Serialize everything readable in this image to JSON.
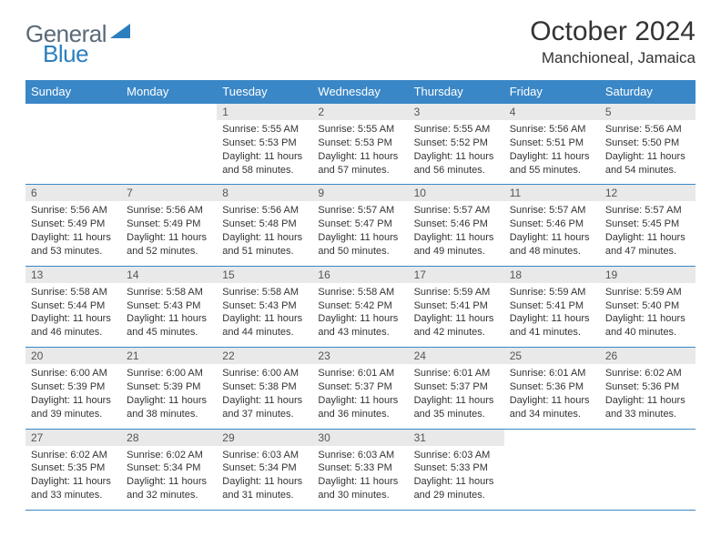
{
  "brand": {
    "part1": "General",
    "part2": "Blue"
  },
  "title": "October 2024",
  "location": "Manchioneal, Jamaica",
  "colors": {
    "header_bg": "#3a87c7",
    "header_text": "#ffffff",
    "daynum_bg": "#e9e9e9",
    "border": "#3a87c7",
    "logo_gray": "#5a6a78",
    "logo_blue": "#2b7fbf"
  },
  "typography": {
    "title_fontsize": 30,
    "location_fontsize": 17,
    "header_fontsize": 13,
    "body_fontsize": 11
  },
  "days_of_week": [
    "Sunday",
    "Monday",
    "Tuesday",
    "Wednesday",
    "Thursday",
    "Friday",
    "Saturday"
  ],
  "weeks": [
    [
      {
        "n": "",
        "sr": "",
        "ss": "",
        "dl": ""
      },
      {
        "n": "",
        "sr": "",
        "ss": "",
        "dl": ""
      },
      {
        "n": "1",
        "sr": "Sunrise: 5:55 AM",
        "ss": "Sunset: 5:53 PM",
        "dl": "Daylight: 11 hours and 58 minutes."
      },
      {
        "n": "2",
        "sr": "Sunrise: 5:55 AM",
        "ss": "Sunset: 5:53 PM",
        "dl": "Daylight: 11 hours and 57 minutes."
      },
      {
        "n": "3",
        "sr": "Sunrise: 5:55 AM",
        "ss": "Sunset: 5:52 PM",
        "dl": "Daylight: 11 hours and 56 minutes."
      },
      {
        "n": "4",
        "sr": "Sunrise: 5:56 AM",
        "ss": "Sunset: 5:51 PM",
        "dl": "Daylight: 11 hours and 55 minutes."
      },
      {
        "n": "5",
        "sr": "Sunrise: 5:56 AM",
        "ss": "Sunset: 5:50 PM",
        "dl": "Daylight: 11 hours and 54 minutes."
      }
    ],
    [
      {
        "n": "6",
        "sr": "Sunrise: 5:56 AM",
        "ss": "Sunset: 5:49 PM",
        "dl": "Daylight: 11 hours and 53 minutes."
      },
      {
        "n": "7",
        "sr": "Sunrise: 5:56 AM",
        "ss": "Sunset: 5:49 PM",
        "dl": "Daylight: 11 hours and 52 minutes."
      },
      {
        "n": "8",
        "sr": "Sunrise: 5:56 AM",
        "ss": "Sunset: 5:48 PM",
        "dl": "Daylight: 11 hours and 51 minutes."
      },
      {
        "n": "9",
        "sr": "Sunrise: 5:57 AM",
        "ss": "Sunset: 5:47 PM",
        "dl": "Daylight: 11 hours and 50 minutes."
      },
      {
        "n": "10",
        "sr": "Sunrise: 5:57 AM",
        "ss": "Sunset: 5:46 PM",
        "dl": "Daylight: 11 hours and 49 minutes."
      },
      {
        "n": "11",
        "sr": "Sunrise: 5:57 AM",
        "ss": "Sunset: 5:46 PM",
        "dl": "Daylight: 11 hours and 48 minutes."
      },
      {
        "n": "12",
        "sr": "Sunrise: 5:57 AM",
        "ss": "Sunset: 5:45 PM",
        "dl": "Daylight: 11 hours and 47 minutes."
      }
    ],
    [
      {
        "n": "13",
        "sr": "Sunrise: 5:58 AM",
        "ss": "Sunset: 5:44 PM",
        "dl": "Daylight: 11 hours and 46 minutes."
      },
      {
        "n": "14",
        "sr": "Sunrise: 5:58 AM",
        "ss": "Sunset: 5:43 PM",
        "dl": "Daylight: 11 hours and 45 minutes."
      },
      {
        "n": "15",
        "sr": "Sunrise: 5:58 AM",
        "ss": "Sunset: 5:43 PM",
        "dl": "Daylight: 11 hours and 44 minutes."
      },
      {
        "n": "16",
        "sr": "Sunrise: 5:58 AM",
        "ss": "Sunset: 5:42 PM",
        "dl": "Daylight: 11 hours and 43 minutes."
      },
      {
        "n": "17",
        "sr": "Sunrise: 5:59 AM",
        "ss": "Sunset: 5:41 PM",
        "dl": "Daylight: 11 hours and 42 minutes."
      },
      {
        "n": "18",
        "sr": "Sunrise: 5:59 AM",
        "ss": "Sunset: 5:41 PM",
        "dl": "Daylight: 11 hours and 41 minutes."
      },
      {
        "n": "19",
        "sr": "Sunrise: 5:59 AM",
        "ss": "Sunset: 5:40 PM",
        "dl": "Daylight: 11 hours and 40 minutes."
      }
    ],
    [
      {
        "n": "20",
        "sr": "Sunrise: 6:00 AM",
        "ss": "Sunset: 5:39 PM",
        "dl": "Daylight: 11 hours and 39 minutes."
      },
      {
        "n": "21",
        "sr": "Sunrise: 6:00 AM",
        "ss": "Sunset: 5:39 PM",
        "dl": "Daylight: 11 hours and 38 minutes."
      },
      {
        "n": "22",
        "sr": "Sunrise: 6:00 AM",
        "ss": "Sunset: 5:38 PM",
        "dl": "Daylight: 11 hours and 37 minutes."
      },
      {
        "n": "23",
        "sr": "Sunrise: 6:01 AM",
        "ss": "Sunset: 5:37 PM",
        "dl": "Daylight: 11 hours and 36 minutes."
      },
      {
        "n": "24",
        "sr": "Sunrise: 6:01 AM",
        "ss": "Sunset: 5:37 PM",
        "dl": "Daylight: 11 hours and 35 minutes."
      },
      {
        "n": "25",
        "sr": "Sunrise: 6:01 AM",
        "ss": "Sunset: 5:36 PM",
        "dl": "Daylight: 11 hours and 34 minutes."
      },
      {
        "n": "26",
        "sr": "Sunrise: 6:02 AM",
        "ss": "Sunset: 5:36 PM",
        "dl": "Daylight: 11 hours and 33 minutes."
      }
    ],
    [
      {
        "n": "27",
        "sr": "Sunrise: 6:02 AM",
        "ss": "Sunset: 5:35 PM",
        "dl": "Daylight: 11 hours and 33 minutes."
      },
      {
        "n": "28",
        "sr": "Sunrise: 6:02 AM",
        "ss": "Sunset: 5:34 PM",
        "dl": "Daylight: 11 hours and 32 minutes."
      },
      {
        "n": "29",
        "sr": "Sunrise: 6:03 AM",
        "ss": "Sunset: 5:34 PM",
        "dl": "Daylight: 11 hours and 31 minutes."
      },
      {
        "n": "30",
        "sr": "Sunrise: 6:03 AM",
        "ss": "Sunset: 5:33 PM",
        "dl": "Daylight: 11 hours and 30 minutes."
      },
      {
        "n": "31",
        "sr": "Sunrise: 6:03 AM",
        "ss": "Sunset: 5:33 PM",
        "dl": "Daylight: 11 hours and 29 minutes."
      },
      {
        "n": "",
        "sr": "",
        "ss": "",
        "dl": ""
      },
      {
        "n": "",
        "sr": "",
        "ss": "",
        "dl": ""
      }
    ]
  ]
}
